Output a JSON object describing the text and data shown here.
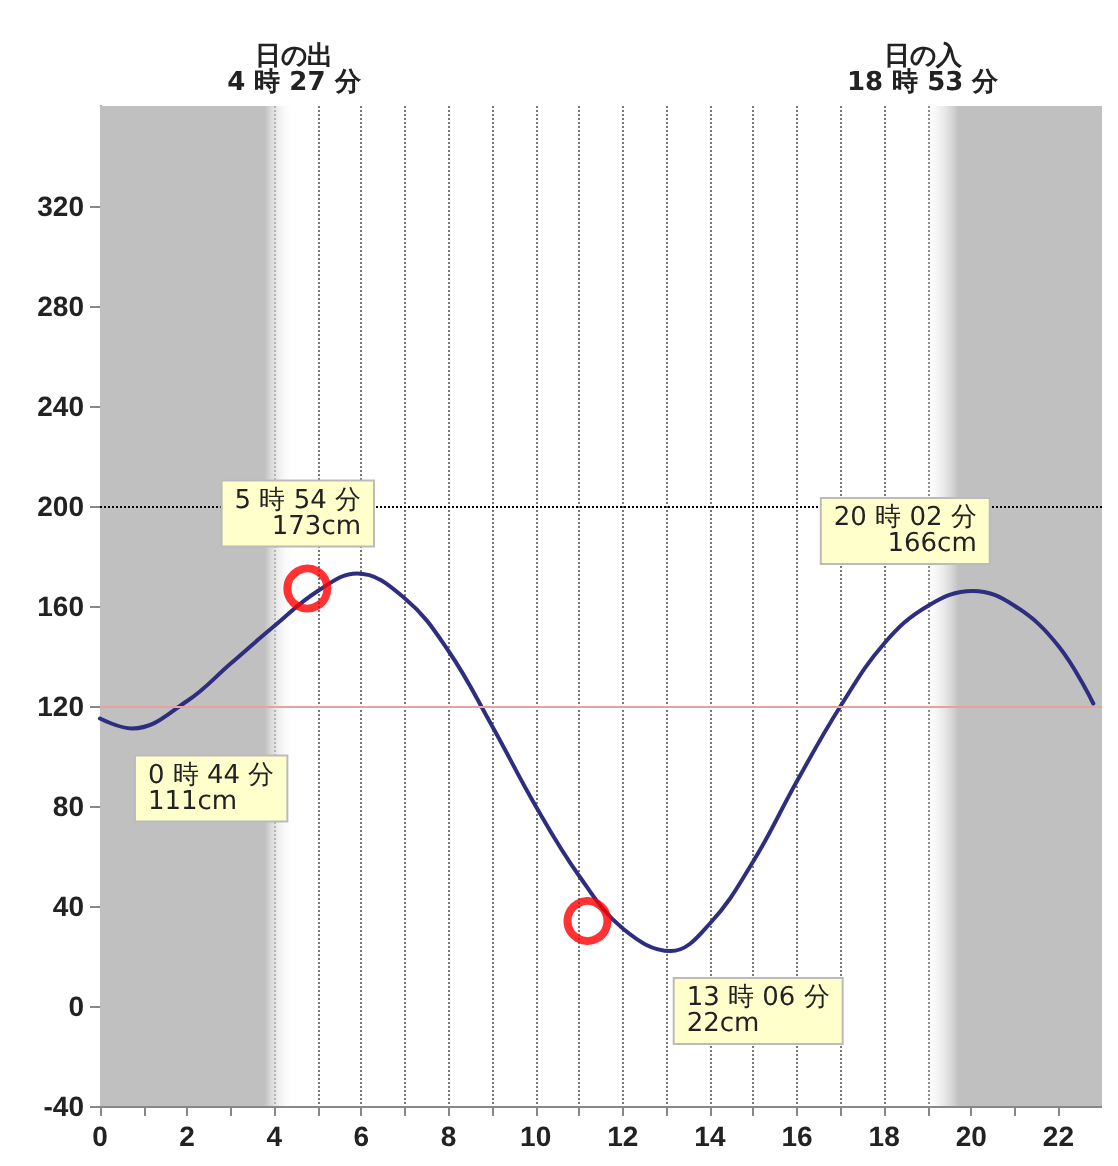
{
  "chart_data": {
    "type": "line",
    "x": [
      0,
      0.733,
      2,
      3,
      4,
      5,
      5.9,
      7,
      8,
      9,
      10,
      11,
      12,
      13.1,
      14,
      15,
      16,
      17,
      18,
      19,
      20.033,
      21,
      22,
      22.8
    ],
    "series": [
      {
        "color": "#2e2e7e",
        "values": [
          115,
          111,
          122,
          137,
          152,
          166,
          173,
          163,
          142,
          112,
          80,
          52,
          31,
          22,
          33,
          58,
          90,
          120,
          145,
          160,
          166,
          160,
          144,
          121
        ]
      },
      {
        "type": "scatter",
        "color": "#ff0000",
        "marker": "circle",
        "x": [
          4.76,
          11.19
        ],
        "values": [
          167,
          34
        ]
      }
    ],
    "xlim": [
      0,
      23
    ],
    "xticks": [
      0,
      {
        "value": 1,
        "label": null
      },
      2,
      {
        "value": 3,
        "label": null
      },
      4,
      {
        "value": 5,
        "label": null
      },
      6,
      {
        "value": 7,
        "label": null
      },
      8,
      {
        "value": 9,
        "label": null
      },
      10,
      {
        "value": 11,
        "label": null
      },
      12,
      {
        "value": 13,
        "label": null
      },
      14,
      {
        "value": 15,
        "label": null
      },
      16,
      {
        "value": 17,
        "label": null
      },
      18,
      {
        "value": 19,
        "label": null
      },
      20,
      {
        "value": 21,
        "label": null
      },
      22
    ],
    "ylim": [
      -40,
      360
    ],
    "yticks": [
      -40,
      0,
      40,
      80,
      120,
      160,
      200,
      240,
      280,
      320
    ],
    "grid": "x",
    "marker": "none",
    "line_style": "solid",
    "ref_lines": [
      {
        "axis": "y",
        "value": 120,
        "color": "#e8a0a0",
        "line_style": "solid"
      },
      {
        "axis": "y",
        "value": 200,
        "color": "#000000",
        "line_style": "dotted"
      }
    ],
    "bands": [
      {
        "axis": "x",
        "from": 0,
        "to": 4.45,
        "label": "日の出\n4 時 27 分",
        "color": "#c0c0c0"
      },
      {
        "axis": "x",
        "from": 18.883,
        "to": 23,
        "label": "日の入\n18 時 53 分",
        "color": "#c0c0c0"
      }
    ],
    "annotations": [
      {
        "text": "0 時 44 分\n111cm",
        "x": 0.733,
        "y": 111
      },
      {
        "text": "5 時 54 分\n173cm",
        "x": 5.9,
        "y": 173
      },
      {
        "text": "13 時 06 分\n22cm",
        "x": 13.1,
        "y": 22
      },
      {
        "text": "20 時 02 分\n166cm",
        "x": 20.033,
        "y": 166
      }
    ]
  }
}
